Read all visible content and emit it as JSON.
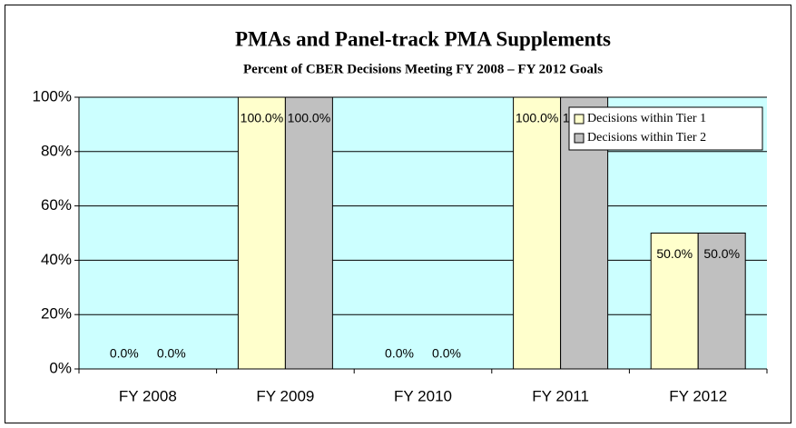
{
  "chart_data": {
    "type": "bar",
    "title": "PMAs and Panel-track PMA Supplements",
    "subtitle": "Percent of CBER Decisions Meeting FY 2008 – FY 2012 Goals",
    "categories": [
      "FY 2008",
      "FY 2009",
      "FY 2010",
      "FY 2011",
      "FY 2012"
    ],
    "series": [
      {
        "name": "Decisions within Tier 1",
        "color": "#ffffcc",
        "values": [
          0,
          100,
          0,
          100,
          50
        ],
        "value_labels": [
          "0.0%",
          "100.0%",
          "0.0%",
          "100.0%",
          "50.0%"
        ]
      },
      {
        "name": "Decisions within Tier 2",
        "color": "#c0c0c0",
        "values": [
          0,
          100,
          0,
          100,
          50
        ],
        "value_labels": [
          "0.0%",
          "100.0%",
          "0.0%",
          "100.0%",
          "50.0%"
        ]
      }
    ],
    "ylim": [
      0,
      100
    ],
    "yticks": [
      {
        "value": 0,
        "label": "0%"
      },
      {
        "value": 20,
        "label": "20%"
      },
      {
        "value": 40,
        "label": "40%"
      },
      {
        "value": 60,
        "label": "60%"
      },
      {
        "value": 80,
        "label": "80%"
      },
      {
        "value": 100,
        "label": "100%"
      }
    ],
    "grid": true,
    "legend": "upper right",
    "plot_background": "#ccffff"
  }
}
